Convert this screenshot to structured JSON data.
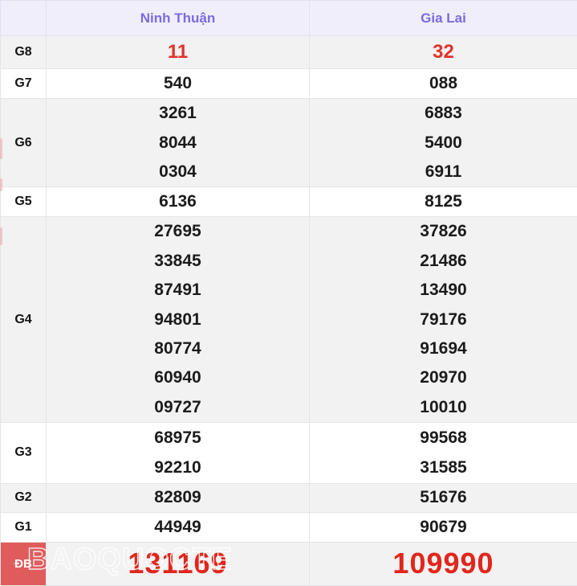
{
  "header": {
    "prize_column_label": "",
    "columns": [
      "Ninh Thuận",
      "Gia Lai"
    ]
  },
  "rows": [
    {
      "id": "G8",
      "label": "G8",
      "values": [
        [
          "11"
        ],
        [
          "32"
        ]
      ]
    },
    {
      "id": "G7",
      "label": "G7",
      "values": [
        [
          "540"
        ],
        [
          "088"
        ]
      ]
    },
    {
      "id": "G6",
      "label": "G6",
      "values": [
        [
          "3261",
          "8044",
          "0304"
        ],
        [
          "6883",
          "5400",
          "6911"
        ]
      ]
    },
    {
      "id": "G5",
      "label": "G5",
      "values": [
        [
          "6136"
        ],
        [
          "8125"
        ]
      ]
    },
    {
      "id": "G4",
      "label": "G4",
      "values": [
        [
          "27695",
          "33845",
          "87491",
          "94801",
          "80774",
          "60940",
          "09727"
        ],
        [
          "37826",
          "21486",
          "13490",
          "79176",
          "91694",
          "20970",
          "10010"
        ]
      ]
    },
    {
      "id": "G3",
      "label": "G3",
      "values": [
        [
          "68975",
          "92210"
        ],
        [
          "99568",
          "31585"
        ]
      ]
    },
    {
      "id": "G2",
      "label": "G2",
      "values": [
        [
          "82809"
        ],
        [
          "51676"
        ]
      ]
    },
    {
      "id": "G1",
      "label": "G1",
      "values": [
        [
          "44949"
        ],
        [
          "90679"
        ]
      ]
    },
    {
      "id": "DB",
      "label": "ĐB",
      "values": [
        [
          "131169"
        ],
        [
          "109990"
        ]
      ]
    }
  ],
  "watermark": {
    "text": "BAOQUOCTE"
  },
  "colors": {
    "header_bg": "#f0eefa",
    "header_text": "#7a6be4",
    "row_alt_bg": "#f2f2f2",
    "row_bg": "#ffffff",
    "border": "#e5e5e7",
    "number_text": "#1b1b1b",
    "red_value": "#e1332b",
    "special_value_red": "#e1261c",
    "special_cell_bg": "#e05c5c"
  }
}
